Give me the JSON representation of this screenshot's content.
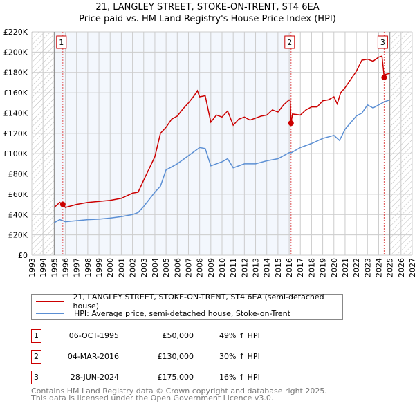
{
  "chart_data": {
    "type": "line",
    "title": "21, LANGLEY STREET, STOKE-ON-TRENT, ST4 6EA",
    "subtitle": "Price paid vs. HM Land Registry's House Price Index (HPI)",
    "xlim": [
      1993,
      2027
    ],
    "ylim": [
      0,
      220000
    ],
    "x_ticks": [
      "1993",
      "1994",
      "1995",
      "1996",
      "1997",
      "1998",
      "1999",
      "2000",
      "2001",
      "2002",
      "2003",
      "2004",
      "2005",
      "2006",
      "2007",
      "2008",
      "2009",
      "2010",
      "2011",
      "2012",
      "2013",
      "2014",
      "2015",
      "2016",
      "2017",
      "2018",
      "2019",
      "2020",
      "2021",
      "2022",
      "2023",
      "2024",
      "2025",
      "2026",
      "2027"
    ],
    "y_ticks": [
      "£0",
      "£20K",
      "£40K",
      "£60K",
      "£80K",
      "£100K",
      "£120K",
      "£140K",
      "£160K",
      "£180K",
      "£200K",
      "£220K"
    ],
    "grid": true,
    "series": [
      {
        "name": "21, LANGLEY STREET, STOKE-ON-TRENT, ST4 6EA (semi-detached house)",
        "color": "#cc0000",
        "x": [
          1995,
          1995.5,
          1995.77,
          1996,
          1997,
          1998,
          1999,
          2000,
          2001,
          2002,
          2002.5,
          2003,
          2004,
          2004.5,
          2005,
          2005.5,
          2006,
          2006.5,
          2007,
          2007.5,
          2007.8,
          2008,
          2008.5,
          2009,
          2009.5,
          2010,
          2010.5,
          2011,
          2011.5,
          2012,
          2012.5,
          2013,
          2013.5,
          2014,
          2014.5,
          2015,
          2015.5,
          2016,
          2016.1,
          2016.17,
          2016.3,
          2017,
          2017.5,
          2018,
          2018.5,
          2019,
          2019.5,
          2020,
          2020.3,
          2020.6,
          2021,
          2021.5,
          2022,
          2022.5,
          2023,
          2023.5,
          2024,
          2024.3,
          2024.45,
          2024.49,
          2024.6,
          2025
        ],
        "y": [
          47000,
          52000,
          50000,
          47000,
          50000,
          52000,
          53000,
          54000,
          56000,
          61000,
          62000,
          74000,
          97000,
          120000,
          126000,
          134000,
          137000,
          144000,
          150000,
          157000,
          162000,
          156000,
          157000,
          131000,
          138000,
          136000,
          142000,
          128000,
          134000,
          136000,
          133000,
          135000,
          137000,
          138000,
          143000,
          141000,
          148000,
          153000,
          152000,
          130000,
          139000,
          138000,
          143000,
          146000,
          146000,
          152000,
          153000,
          156000,
          149000,
          160000,
          165000,
          173000,
          181000,
          192000,
          193000,
          191000,
          195000,
          196000,
          180000,
          175000,
          178000,
          179000
        ]
      },
      {
        "name": "HPI: Average price, semi-detached house, Stoke-on-Trent",
        "color": "#5b8fd4",
        "x": [
          1995,
          1995.5,
          1996,
          1997,
          1998,
          1999,
          2000,
          2001,
          2002,
          2002.5,
          2003,
          2004,
          2004.5,
          2005,
          2006,
          2007,
          2008,
          2008.5,
          2009,
          2010,
          2010.5,
          2011,
          2012,
          2013,
          2014,
          2015,
          2016,
          2016.2,
          2017,
          2018,
          2019,
          2020,
          2020.5,
          2021,
          2022,
          2022.5,
          2023,
          2023.5,
          2024,
          2024.5,
          2025
        ],
        "y": [
          32000,
          35000,
          33000,
          34000,
          35000,
          35500,
          36500,
          38000,
          40000,
          42000,
          48000,
          62000,
          68000,
          84000,
          90000,
          98000,
          106000,
          105000,
          88000,
          92000,
          95000,
          86000,
          90000,
          90000,
          93000,
          95000,
          101000,
          101000,
          106000,
          110000,
          115000,
          118000,
          113000,
          124000,
          137000,
          140000,
          148000,
          145000,
          148000,
          151000,
          153000
        ]
      }
    ],
    "sales": [
      {
        "label": "1",
        "x": 1995.77,
        "y": 50000
      },
      {
        "label": "2",
        "x": 2016.17,
        "y": 130000
      },
      {
        "label": "3",
        "x": 2024.49,
        "y": 175000
      }
    ],
    "data_range": [
      1995,
      2025
    ]
  },
  "legend": {
    "red": "21, LANGLEY STREET, STOKE-ON-TRENT, ST4 6EA (semi-detached house)",
    "blue": "HPI: Average price, semi-detached house, Stoke-on-Trent"
  },
  "table": [
    {
      "num": "1",
      "date": "06-OCT-1995",
      "price": "£50,000",
      "hpi": "49% ↑ HPI"
    },
    {
      "num": "2",
      "date": "04-MAR-2016",
      "price": "£130,000",
      "hpi": "30% ↑ HPI"
    },
    {
      "num": "3",
      "date": "28-JUN-2024",
      "price": "£175,000",
      "hpi": "16% ↑ HPI"
    }
  ],
  "footer": {
    "line1": "Contains HM Land Registry data © Crown copyright and database right 2025.",
    "line2": "This data is licensed under the Open Government Licence v3.0."
  }
}
